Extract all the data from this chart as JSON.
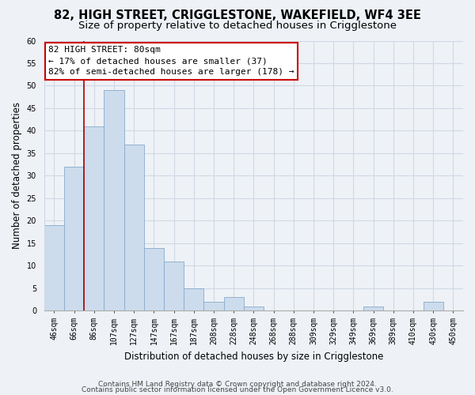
{
  "title": "82, HIGH STREET, CRIGGLESTONE, WAKEFIELD, WF4 3EE",
  "subtitle": "Size of property relative to detached houses in Crigglestone",
  "xlabel": "Distribution of detached houses by size in Crigglestone",
  "ylabel": "Number of detached properties",
  "bar_labels": [
    "46sqm",
    "66sqm",
    "86sqm",
    "107sqm",
    "127sqm",
    "147sqm",
    "167sqm",
    "187sqm",
    "208sqm",
    "228sqm",
    "248sqm",
    "268sqm",
    "288sqm",
    "309sqm",
    "329sqm",
    "349sqm",
    "369sqm",
    "389sqm",
    "410sqm",
    "430sqm",
    "450sqm"
  ],
  "bar_heights": [
    19,
    32,
    41,
    49,
    37,
    14,
    11,
    5,
    2,
    3,
    1,
    0,
    0,
    0,
    0,
    0,
    1,
    0,
    0,
    2,
    0
  ],
  "bar_color": "#ccdcec",
  "bar_edge_color": "#88aacc",
  "vline_x_index": 2,
  "vline_color": "#aa0000",
  "ylim": [
    0,
    60
  ],
  "yticks": [
    0,
    5,
    10,
    15,
    20,
    25,
    30,
    35,
    40,
    45,
    50,
    55,
    60
  ],
  "annotation_title": "82 HIGH STREET: 80sqm",
  "annotation_line1": "← 17% of detached houses are smaller (37)",
  "annotation_line2": "82% of semi-detached houses are larger (178) →",
  "annotation_box_color": "#ffffff",
  "annotation_box_edge": "#cc0000",
  "footer1": "Contains HM Land Registry data © Crown copyright and database right 2024.",
  "footer2": "Contains public sector information licensed under the Open Government Licence v3.0.",
  "bg_color": "#eef2f7",
  "grid_color": "#d0d8e4",
  "title_fontsize": 10.5,
  "subtitle_fontsize": 9.5,
  "axis_label_fontsize": 8.5,
  "tick_fontsize": 7,
  "annotation_fontsize": 8,
  "footer_fontsize": 6.5
}
